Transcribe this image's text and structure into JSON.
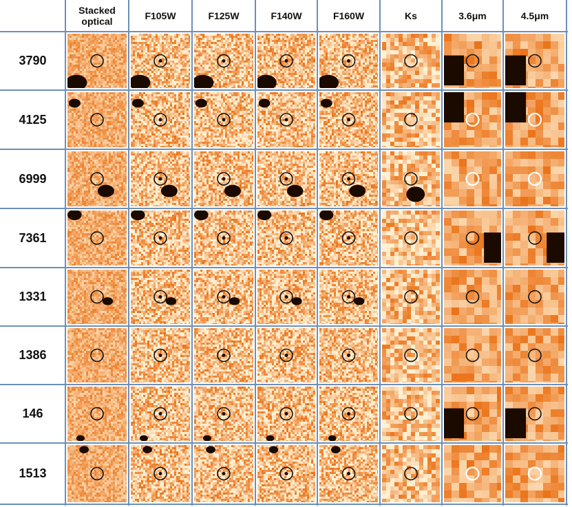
{
  "figure": {
    "columns": [
      "Stacked optical",
      "F105W",
      "F125W",
      "F140W",
      "F160W",
      "Ks",
      "3.6μm",
      "4.5μm"
    ],
    "column_labels_multiline": [
      [
        "Stacked",
        "optical"
      ],
      [
        "F105W"
      ],
      [
        "F125W"
      ],
      [
        "F140W"
      ],
      [
        "F160W"
      ],
      [
        "Ks"
      ],
      [
        "3.6μm"
      ],
      [
        "4.5μm"
      ]
    ],
    "rows": [
      {
        "id": "3790"
      },
      {
        "id": "4125"
      },
      {
        "id": "6999"
      },
      {
        "id": "7361"
      },
      {
        "id": "1331"
      },
      {
        "id": "1386"
      },
      {
        "id": "146"
      },
      {
        "id": "1513"
      }
    ]
  },
  "colors": {
    "background_light": "#f6c47e",
    "background_mid": "#e88a2a",
    "dark": "#1a0a00",
    "grid_line": "#6b8fb8",
    "marker_dark": "#111111",
    "marker_light": "#ffffff"
  }
}
